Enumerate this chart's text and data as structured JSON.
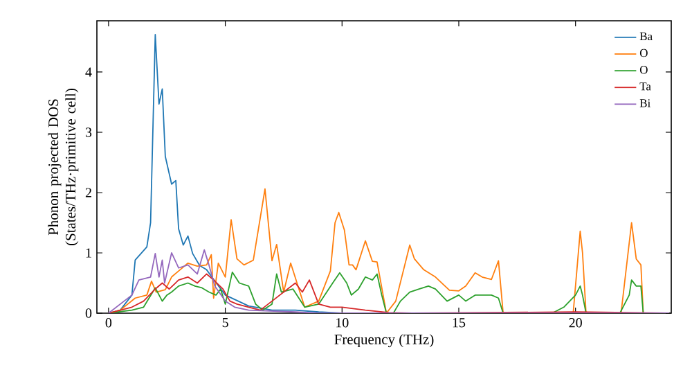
{
  "chart_data": {
    "type": "line",
    "xlabel": "Frequency (THz)",
    "ylabel": "Phonon projected DOS (States/THz·primitive cell)",
    "xlim": [
      -0.5,
      24.1
    ],
    "ylim": [
      0,
      4.85
    ],
    "xticks": [
      0,
      5,
      10,
      15,
      20
    ],
    "yticks": [
      0,
      1,
      2,
      3,
      4
    ],
    "legend": "top right",
    "grid": false,
    "series": [
      {
        "name": "Ba",
        "color": "#1f77b4",
        "x": [
          0,
          0.5,
          1.0,
          1.14,
          1.64,
          1.8,
          2.0,
          2.16,
          2.3,
          2.43,
          2.7,
          2.88,
          3.0,
          3.2,
          3.4,
          3.6,
          3.9,
          4.2,
          4.5,
          5.0,
          6.0,
          7.0,
          8.0,
          9.0,
          10.0,
          24.0
        ],
        "values": [
          0,
          0.05,
          0.3,
          0.88,
          1.1,
          1.5,
          4.62,
          3.47,
          3.72,
          2.6,
          2.14,
          2.2,
          1.4,
          1.13,
          1.28,
          0.99,
          0.79,
          0.72,
          0.56,
          0.3,
          0.12,
          0.05,
          0.05,
          0.02,
          0,
          0
        ]
      },
      {
        "name": "O",
        "color": "#ff7f0e",
        "x": [
          0,
          0.5,
          1.14,
          1.64,
          1.84,
          2.04,
          2.43,
          2.7,
          3.0,
          3.4,
          3.8,
          4.2,
          4.4,
          4.5,
          4.7,
          5.0,
          5.25,
          5.5,
          5.8,
          6.2,
          6.7,
          7.0,
          7.2,
          7.5,
          7.8,
          8.4,
          9.0,
          9.5,
          9.7,
          9.86,
          10.1,
          10.3,
          10.45,
          10.6,
          11.0,
          11.3,
          11.5,
          11.9,
          12.3,
          12.9,
          13.1,
          13.5,
          14.0,
          14.6,
          15.0,
          15.3,
          15.7,
          16.0,
          16.4,
          16.7,
          16.9,
          19.9,
          20.2,
          20.3,
          20.45,
          21.95,
          22.4,
          22.6,
          22.8,
          22.9,
          24.0
        ],
        "values": [
          0,
          0.05,
          0.25,
          0.3,
          0.53,
          0.35,
          0.39,
          0.6,
          0.7,
          0.83,
          0.78,
          0.8,
          0.97,
          0.25,
          0.83,
          0.6,
          1.55,
          0.9,
          0.8,
          0.88,
          2.06,
          0.87,
          1.14,
          0.35,
          0.83,
          0.1,
          0.2,
          0.7,
          1.5,
          1.67,
          1.38,
          0.8,
          0.8,
          0.72,
          1.2,
          0.86,
          0.85,
          0,
          0.2,
          1.13,
          0.9,
          0.72,
          0.6,
          0.38,
          0.37,
          0.45,
          0.67,
          0.6,
          0.56,
          0.87,
          0,
          0,
          1.36,
          1.0,
          0,
          0,
          1.5,
          0.9,
          0.8,
          0,
          0
        ]
      },
      {
        "name": "O",
        "color": "#2ca02c",
        "x": [
          0,
          1.0,
          1.5,
          2.0,
          2.3,
          2.5,
          2.7,
          3.0,
          3.4,
          3.7,
          4.0,
          4.3,
          4.6,
          4.8,
          5.0,
          5.3,
          5.6,
          6.0,
          6.3,
          6.6,
          7.0,
          7.2,
          7.4,
          7.9,
          8.4,
          9.0,
          9.6,
          9.9,
          10.2,
          10.4,
          10.7,
          11.0,
          11.3,
          11.5,
          11.7,
          11.9,
          12.2,
          12.5,
          12.9,
          13.3,
          13.7,
          14.0,
          14.5,
          15.0,
          15.3,
          15.7,
          16.0,
          16.4,
          16.7,
          16.9,
          19.0,
          19.5,
          20.0,
          20.2,
          20.3,
          20.45,
          21.9,
          22.3,
          22.4,
          22.6,
          22.8,
          22.9,
          24.0
        ],
        "values": [
          0,
          0.05,
          0.1,
          0.42,
          0.2,
          0.3,
          0.35,
          0.45,
          0.5,
          0.45,
          0.42,
          0.35,
          0.3,
          0.4,
          0.15,
          0.68,
          0.5,
          0.45,
          0.15,
          0.05,
          0.15,
          0.65,
          0.35,
          0.4,
          0.1,
          0.15,
          0.5,
          0.67,
          0.5,
          0.3,
          0.4,
          0.6,
          0.55,
          0.65,
          0.3,
          0,
          0,
          0.2,
          0.35,
          0.4,
          0.45,
          0.4,
          0.2,
          0.3,
          0.2,
          0.3,
          0.3,
          0.3,
          0.25,
          0,
          0,
          0.1,
          0.3,
          0.45,
          0.3,
          0,
          0,
          0.3,
          0.55,
          0.45,
          0.45,
          0,
          0
        ]
      },
      {
        "name": "Ta",
        "color": "#d62728",
        "x": [
          0,
          1.0,
          1.5,
          2.0,
          2.3,
          2.6,
          3.0,
          3.4,
          3.8,
          4.2,
          4.5,
          4.9,
          5.2,
          5.5,
          6.0,
          6.5,
          7.0,
          7.5,
          8.0,
          8.3,
          8.6,
          9.0,
          9.5,
          10.0,
          11.0,
          12.0,
          13.0,
          20.0,
          24.0
        ],
        "values": [
          0,
          0.1,
          0.2,
          0.4,
          0.5,
          0.4,
          0.55,
          0.6,
          0.5,
          0.65,
          0.55,
          0.4,
          0.2,
          0.15,
          0.1,
          0.05,
          0.2,
          0.35,
          0.5,
          0.35,
          0.55,
          0.15,
          0.1,
          0.1,
          0.05,
          0.01,
          0,
          0.02,
          0
        ]
      },
      {
        "name": "Bi",
        "color": "#9467bd",
        "x": [
          0,
          1.0,
          1.3,
          1.8,
          2.0,
          2.16,
          2.3,
          2.4,
          2.7,
          3.0,
          3.4,
          3.8,
          4.1,
          4.3,
          4.55,
          5.0,
          5.4,
          6.0,
          8.0,
          9.0,
          24.0
        ],
        "values": [
          0,
          0.3,
          0.55,
          0.6,
          0.99,
          0.6,
          0.88,
          0.5,
          1.0,
          0.75,
          0.8,
          0.65,
          1.05,
          0.8,
          0.45,
          0.2,
          0.1,
          0.05,
          0.02,
          0,
          0
        ]
      }
    ]
  }
}
